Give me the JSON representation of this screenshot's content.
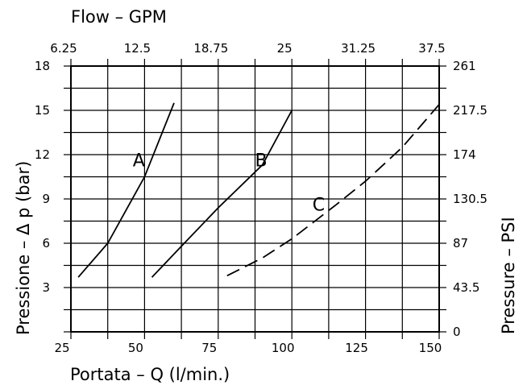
{
  "chart_data": {
    "type": "line",
    "top_axis": {
      "label": "Flow  –  GPM",
      "ticks": [
        "6.25",
        "12.5",
        "18.75",
        "25",
        "31.25",
        "37.5"
      ]
    },
    "bottom_axis": {
      "label": "Portata  –  Q  (l/min.)",
      "ticks": [
        "25",
        "50",
        "75",
        "100",
        "125",
        "150"
      ],
      "range": [
        25,
        150
      ]
    },
    "left_axis": {
      "label": "Pressione  –  Δ  p  (bar)",
      "ticks": [
        "3",
        "6",
        "9",
        "12",
        "15",
        "18"
      ],
      "range": [
        0,
        18
      ]
    },
    "right_axis": {
      "label": "Pressure  –  PSI",
      "ticks": [
        "0",
        "43.5",
        "87",
        "130.5",
        "174",
        "217.5",
        "261"
      ]
    },
    "grid": true,
    "series": [
      {
        "name": "A",
        "dashed": false,
        "points": [
          [
            27.5,
            3.7
          ],
          [
            37.5,
            6.0
          ],
          [
            50,
            10.5
          ],
          [
            60,
            15.5
          ]
        ]
      },
      {
        "name": "B",
        "dashed": false,
        "points": [
          [
            52.5,
            3.7
          ],
          [
            62.5,
            5.8
          ],
          [
            75,
            8.4
          ],
          [
            90,
            11.3
          ],
          [
            100,
            15.0
          ]
        ]
      },
      {
        "name": "C",
        "dashed": true,
        "points": [
          [
            78,
            3.8
          ],
          [
            90,
            5.0
          ],
          [
            100,
            6.3
          ],
          [
            115,
            8.6
          ],
          [
            125,
            10.2
          ],
          [
            137.5,
            12.5
          ],
          [
            150,
            15.4
          ]
        ]
      }
    ],
    "curve_labels": [
      {
        "text": "A",
        "x": 46,
        "y": 11.2
      },
      {
        "text": "B",
        "x": 87.5,
        "y": 11.2
      },
      {
        "text": "C",
        "x": 107,
        "y": 8.2
      }
    ]
  }
}
